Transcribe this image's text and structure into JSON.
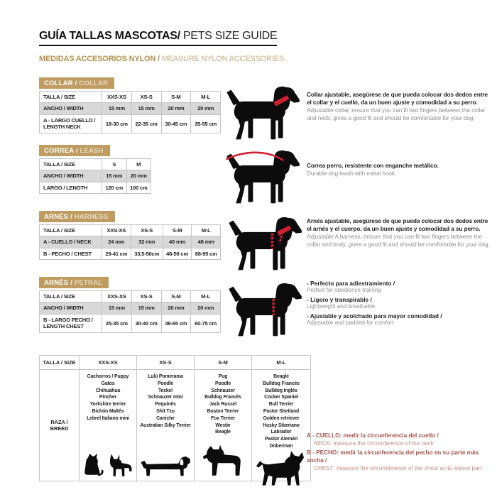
{
  "page": {
    "title_es": "GUÍA TALLAS MASCOTAS/",
    "title_en": " PETS SIZE GUIDE",
    "subtitle_es": "MEDIDAS ACCESORIOS NYLON /",
    "subtitle_en": " MEASURE NYLON ACCESSORIES:"
  },
  "colors": {
    "gold": "#bf9d62",
    "gray_row": "#d8d8d8",
    "marking_red": "#cf2030",
    "note_red": "#a8524a"
  },
  "sections": {
    "collar": {
      "badge": {
        "es": "COLLAR /",
        "en": " COLLAR"
      },
      "table": {
        "header": [
          "TALLA / SIZE",
          "XXS-XS",
          "XS-S",
          "S-M",
          "M-L"
        ],
        "rows": [
          {
            "label": "ANCHO / WIDTH",
            "values": [
              "15 mm",
              "15 mm",
              "20 mm",
              "20 mm"
            ]
          },
          {
            "label": "A - LARGO CUELLO / LENGTH NECK",
            "values": [
              "18-30 cm",
              "22-35 cm",
              "30-45 cm",
              "35-55 cm"
            ]
          }
        ]
      },
      "desc": {
        "es": "Collar ajustable, asegúrese de que pueda colocar dos dedos entre el collar y el cuello, da un buen ajuste y comodidad a su perro.",
        "en": "Adjustable collar, ensure that you can fit two fingers between the collar and neck, gives a good fit and should be comfortable for your dog."
      }
    },
    "leash": {
      "badge": {
        "es": "CORREA /",
        "en": " LEASH"
      },
      "table": {
        "header": [
          "TALLA / SIZE",
          "S",
          "M"
        ],
        "rows": [
          {
            "label": "ANCHO / WIDTH",
            "values": [
              "15 mm",
              "20 mm"
            ]
          },
          {
            "label": "LARGO / LENGTH",
            "values": [
              "120 cm",
              "100 cm"
            ]
          }
        ]
      },
      "desc": {
        "es": "Correa perro, resistente con enganche metálico.",
        "en": "Durable dog leash with metal hook."
      }
    },
    "harness": {
      "badge": {
        "es": "ARNÉS /",
        "en": " HARNESS"
      },
      "table": {
        "header": [
          "TALLA / SIZE",
          "XXS-XS",
          "XS-S",
          "S-M",
          "M-L"
        ],
        "rows": [
          {
            "label": "A - CUELLO / NECK",
            "values": [
              "24 mm",
              "32 mm",
              "40 mm",
              "48 mm"
            ]
          },
          {
            "label": "B - PECHO / CHEST",
            "values": [
              "29-41 cm",
              "33,5-50cm",
              "48-59 cm",
              "68-95 cm"
            ]
          }
        ]
      },
      "desc": {
        "es": "Arnés ajustable, asegúrese de que pueda colocar dos dedos entre el arnés y el cuerpo, da un buen ajuste y comodidad a su perro.",
        "en": "Adjustable A harness, ensure that you can fit two fingers between the collar and body, gives a good fit and should be comfortable for your dog."
      }
    },
    "petral": {
      "badge": {
        "es": "ARNÉS /",
        "en": " PETRAL"
      },
      "table": {
        "header": [
          "TALLA / SIZE",
          "XXS-XS",
          "XS-S",
          "S-M",
          "M-L"
        ],
        "rows": [
          {
            "label": "ANCHO / WIDTH",
            "values": [
              "15 mm",
              "15 mm",
              "20 mm",
              "20 mm"
            ]
          },
          {
            "label": "B - LARGO PECHO / LENGTH CHEST",
            "values": [
              "25-35 cm",
              "30-40 cm",
              "48-65 cm",
              "60-75 cm"
            ]
          }
        ]
      },
      "bullets": [
        {
          "es": "- Perfecto para adiestramiento /",
          "en": "Perfect for obedience training"
        },
        {
          "es": "- Ligero y transpirable /",
          "en": "Lightweight and breathable"
        },
        {
          "es": "- Ajustable y acolchado para mayor comodidad /",
          "en": "Adjustable and padded for comfort"
        }
      ]
    }
  },
  "breeds": {
    "header": [
      "TALLA / SIZE",
      "XXS-XS",
      "XS-S",
      "S-M",
      "M-L"
    ],
    "row_label": "RAZA / BREED",
    "columns": [
      {
        "size": "XXS-XS",
        "list": [
          "Cachorros / Puppy",
          "Gatos",
          "Chihuahua",
          "Pincher",
          "Yorkshire terrier",
          "Bichón Maltés",
          "Lebrel Italiano mini"
        ]
      },
      {
        "size": "XS-S",
        "list": [
          "Lulú Pomerania",
          "Poodle",
          "Teckel",
          "Schnauzer mini",
          "Pequinés",
          "Shit Tzu",
          "Caniche",
          "Australian Silky Terrier"
        ]
      },
      {
        "size": "S-M",
        "list": [
          "Pug",
          "Poodle",
          "Schnauzer",
          "Bulldog Francés",
          "Jack Russel",
          "Boston Terrier",
          "Fox Terrier",
          "Westie",
          "Beagle"
        ]
      },
      {
        "size": "M-L",
        "list": [
          "Beagle",
          "Bulldog Francés",
          "Bulldog Inglés",
          "Cocker Spaniel",
          "Bull Terrier",
          "Pastor Shetland",
          "Golden retriever",
          "Husky Siberiano",
          "Labrador",
          "Pastor Alemán",
          "Doberman"
        ]
      }
    ]
  },
  "notes": [
    {
      "es": "A - CUELLO: medir la circunferencia del cuello /",
      "en": "NECK: measure the circumference of the neck"
    },
    {
      "es": "B - PECHO: medir la circunferencia del pecho en su parte más ancha /",
      "en": "CHEST: measure the circumference of the chest at its widest part"
    }
  ],
  "icons": {
    "collar_dog": "dog-with-collar",
    "leash_dog": "dog-with-leash",
    "harness_dog": "dog-with-harness",
    "petral_dog": "dog-with-chest-strap",
    "breed_xxs": "cat-and-chihuahua-silhouette",
    "breed_xs": "dachshund-silhouette",
    "breed_sm": "schnauzer-silhouette",
    "breed_ml": "doberman-silhouette"
  }
}
